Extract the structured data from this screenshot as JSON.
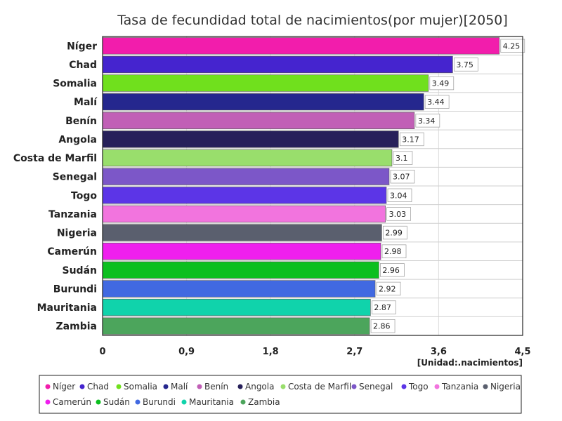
{
  "chart_data": {
    "type": "bar",
    "orientation": "horizontal",
    "title": "Tasa de fecundidad total de nacimientos(por mujer)[2050]",
    "unit_label": "[Unidad:.nacimientos]",
    "categories": [
      "Níger",
      "Chad",
      "Somalia",
      "Malí",
      "Benín",
      "Angola",
      "Costa de Marfil",
      "Senegal",
      "Togo",
      "Tanzania",
      "Nigeria",
      "Camerún",
      "Sudán",
      "Burundi",
      "Mauritania",
      "Zambia"
    ],
    "values": [
      4.25,
      3.75,
      3.49,
      3.44,
      3.34,
      3.17,
      3.1,
      3.07,
      3.04,
      3.03,
      2.99,
      2.98,
      2.96,
      2.92,
      2.87,
      2.86
    ],
    "value_labels": [
      "4.25",
      "3.75",
      "3.49",
      "3.44",
      "3.34",
      "3.17",
      "3.1",
      "3.07",
      "3.04",
      "3.03",
      "2.99",
      "2.98",
      "2.96",
      "2.92",
      "2.87",
      "2.86"
    ],
    "colors": [
      "#f21dac",
      "#4524cf",
      "#70e01d",
      "#25278e",
      "#c15fb6",
      "#27205a",
      "#99de6c",
      "#7c57c8",
      "#5c35e7",
      "#f274de",
      "#5a5f6e",
      "#ef1fee",
      "#0bbf1f",
      "#4169e1",
      "#10d3ab",
      "#4ca55c"
    ],
    "xlim": [
      0,
      4.5
    ],
    "x_ticks": [
      0,
      0.9,
      1.8,
      2.7,
      3.6,
      4.5
    ],
    "x_tick_labels": [
      "0",
      "0,9",
      "1,8",
      "2,7",
      "3,6",
      "4,5"
    ],
    "grid": true,
    "legend_position": "bottom"
  }
}
